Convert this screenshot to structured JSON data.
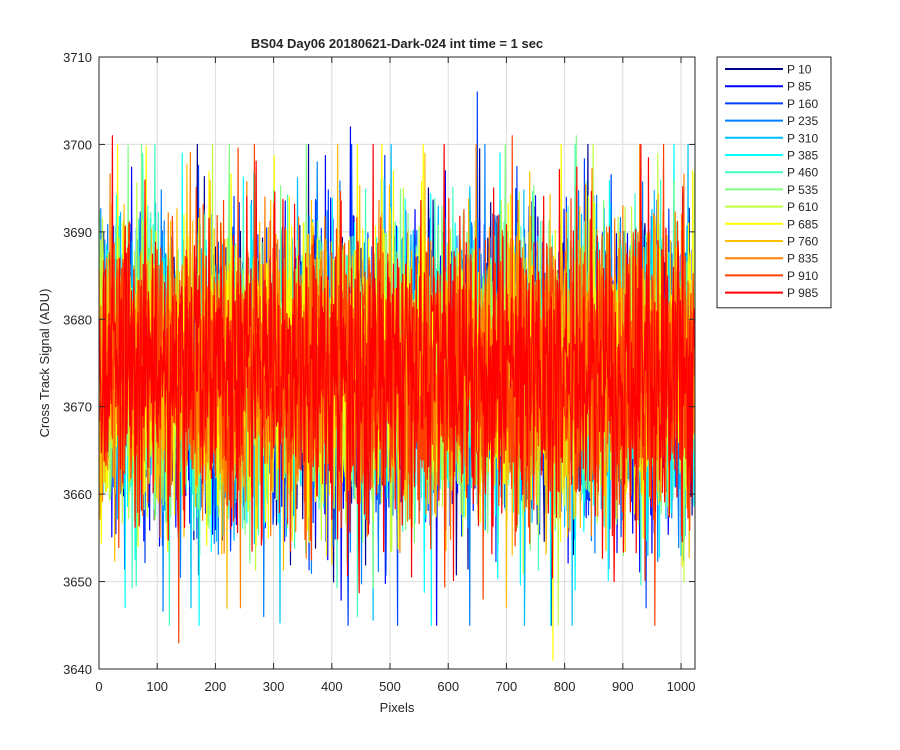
{
  "chart_data": {
    "type": "line",
    "title": "BS04 Day06 20180621-Dark-024 int time = 1 sec",
    "xlabel": "Pixels",
    "ylabel": "Cross Track Signal (ADU)",
    "xlim": [
      0,
      1024
    ],
    "ylim": [
      3640,
      3710
    ],
    "xticks": [
      0,
      100,
      200,
      300,
      400,
      500,
      600,
      700,
      800,
      900,
      1000
    ],
    "yticks": [
      3640,
      3650,
      3660,
      3670,
      3680,
      3690,
      3700,
      3710
    ],
    "grid": true,
    "legend_position": "outside-top-right",
    "noise_model": {
      "mean": 3674,
      "sd": 8,
      "min": 3641,
      "max": 3706,
      "points_per_series": 1024
    },
    "series": [
      {
        "name": "P 10",
        "color": "#00008f",
        "peak": {
          "x": 0,
          "y": 3688
        }
      },
      {
        "name": "P 85",
        "color": "#0000ff",
        "peak": {
          "x": 432,
          "y": 3702
        }
      },
      {
        "name": "P 160",
        "color": "#0040ff",
        "peak": {
          "x": 650,
          "y": 3706
        }
      },
      {
        "name": "P 235",
        "color": "#0080ff",
        "peak": {
          "x": 375,
          "y": 3698
        }
      },
      {
        "name": "P 310",
        "color": "#00bfff",
        "peak": {
          "x": 490,
          "y": 3696
        }
      },
      {
        "name": "P 385",
        "color": "#00ffff",
        "peak": {
          "x": 143,
          "y": 3699
        }
      },
      {
        "name": "P 460",
        "color": "#40ffbf",
        "peak": {
          "x": 75,
          "y": 3699
        }
      },
      {
        "name": "P 535",
        "color": "#80ff80",
        "peak": {
          "x": 820,
          "y": 3701
        }
      },
      {
        "name": "P 610",
        "color": "#bfff40",
        "peak": {
          "x": 960,
          "y": 3699
        }
      },
      {
        "name": "P 685",
        "color": "#ffff00",
        "peak": {
          "x": 1020,
          "y": 3697
        }
      },
      {
        "name": "P 760",
        "color": "#ffbf00",
        "peak": {
          "x": 560,
          "y": 3699
        }
      },
      {
        "name": "P 835",
        "color": "#ff8000",
        "peak": {
          "x": 285,
          "y": 3694
        }
      },
      {
        "name": "P 910",
        "color": "#ff4000",
        "peak": {
          "x": 710,
          "y": 3701
        }
      },
      {
        "name": "P 985",
        "color": "#ff0000",
        "peak": {
          "x": 23,
          "y": 3701
        }
      }
    ],
    "extremes_low": [
      {
        "x": 137,
        "y": 3643,
        "series": 12
      },
      {
        "x": 780,
        "y": 3641,
        "series": 9
      },
      {
        "x": 283,
        "y": 3646,
        "series": 3
      },
      {
        "x": 580,
        "y": 3645,
        "series": 1
      },
      {
        "x": 45,
        "y": 3647,
        "series": 5
      },
      {
        "x": 243,
        "y": 3647,
        "series": 11
      },
      {
        "x": 940,
        "y": 3647,
        "series": 2
      },
      {
        "x": 700,
        "y": 3647,
        "series": 10
      },
      {
        "x": 660,
        "y": 3648,
        "series": 12
      },
      {
        "x": 885,
        "y": 3650,
        "series": 13
      }
    ]
  }
}
